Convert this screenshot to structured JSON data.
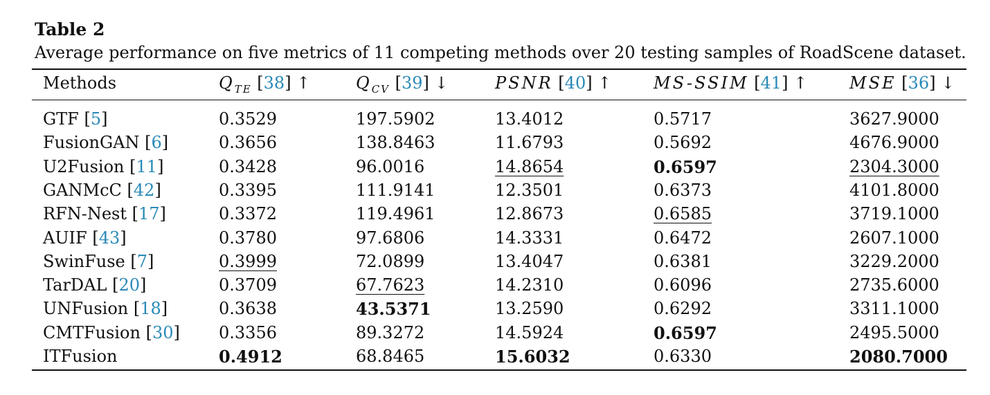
{
  "table_label": "Table 2",
  "caption": "Average performance on five metrics of 11 competing methods over 20 testing samples of RoadScene dataset.",
  "headers": [
    {
      "text": "Methods"
    },
    {
      "sym": "Q",
      "sub": "TE",
      "cite": "38",
      "arrow": "↑"
    },
    {
      "sym": "Q",
      "sub": "CV",
      "cite": "39",
      "arrow": "↓"
    },
    {
      "sym": "PSNR",
      "cite": "40",
      "arrow": "↑"
    },
    {
      "sym": "MS-SSIM",
      "cite": "41",
      "arrow": "↑"
    },
    {
      "sym": "MSE",
      "cite": "36",
      "arrow": "↓"
    }
  ],
  "rows": [
    {
      "method": "GTF",
      "cite": "5",
      "values": [
        "0.3529",
        "197.5902",
        "13.4012",
        "0.5717",
        "3627.9000"
      ],
      "bold": [],
      "underline": []
    },
    {
      "method": "FusionGAN",
      "cite": "6",
      "values": [
        "0.3656",
        "138.8463",
        "11.6793",
        "0.5692",
        "4676.9000"
      ],
      "bold": [],
      "underline": []
    },
    {
      "method": "U2Fusion",
      "cite": "11",
      "values": [
        "0.3428",
        "96.0016",
        "14.8654",
        "0.6597",
        "2304.3000"
      ],
      "bold": [
        3
      ],
      "underline": [
        2,
        4
      ]
    },
    {
      "method": "GANMcC",
      "cite": "42",
      "values": [
        "0.3395",
        "111.9141",
        "12.3501",
        "0.6373",
        "4101.8000"
      ],
      "bold": [],
      "underline": []
    },
    {
      "method": "RFN-Nest",
      "cite": "17",
      "values": [
        "0.3372",
        "119.4961",
        "12.8673",
        "0.6585",
        "3719.1000"
      ],
      "bold": [],
      "underline": [
        3
      ]
    },
    {
      "method": "AUIF",
      "cite": "43",
      "values": [
        "0.3780",
        "97.6806",
        "14.3331",
        "0.6472",
        "2607.1000"
      ],
      "bold": [],
      "underline": []
    },
    {
      "method": "SwinFuse",
      "cite": "7",
      "values": [
        "0.3999",
        "72.0899",
        "13.4047",
        "0.6381",
        "3229.2000"
      ],
      "bold": [],
      "underline": [
        0
      ]
    },
    {
      "method": "TarDAL",
      "cite": "20",
      "values": [
        "0.3709",
        "67.7623",
        "14.2310",
        "0.6096",
        "2735.6000"
      ],
      "bold": [],
      "underline": [
        1
      ]
    },
    {
      "method": "UNFusion",
      "cite": "18",
      "values": [
        "0.3638",
        "43.5371",
        "13.2590",
        "0.6292",
        "3311.1000"
      ],
      "bold": [
        1
      ],
      "underline": []
    },
    {
      "method": "CMTFusion",
      "cite": "30",
      "values": [
        "0.3356",
        "89.3272",
        "14.5924",
        "0.6597",
        "2495.5000"
      ],
      "bold": [
        3
      ],
      "underline": []
    },
    {
      "method": "ITFusion",
      "cite": "",
      "values": [
        "0.4912",
        "68.8465",
        "15.6032",
        "0.6330",
        "2080.7000"
      ],
      "bold": [
        0,
        2,
        4
      ],
      "underline": []
    }
  ]
}
